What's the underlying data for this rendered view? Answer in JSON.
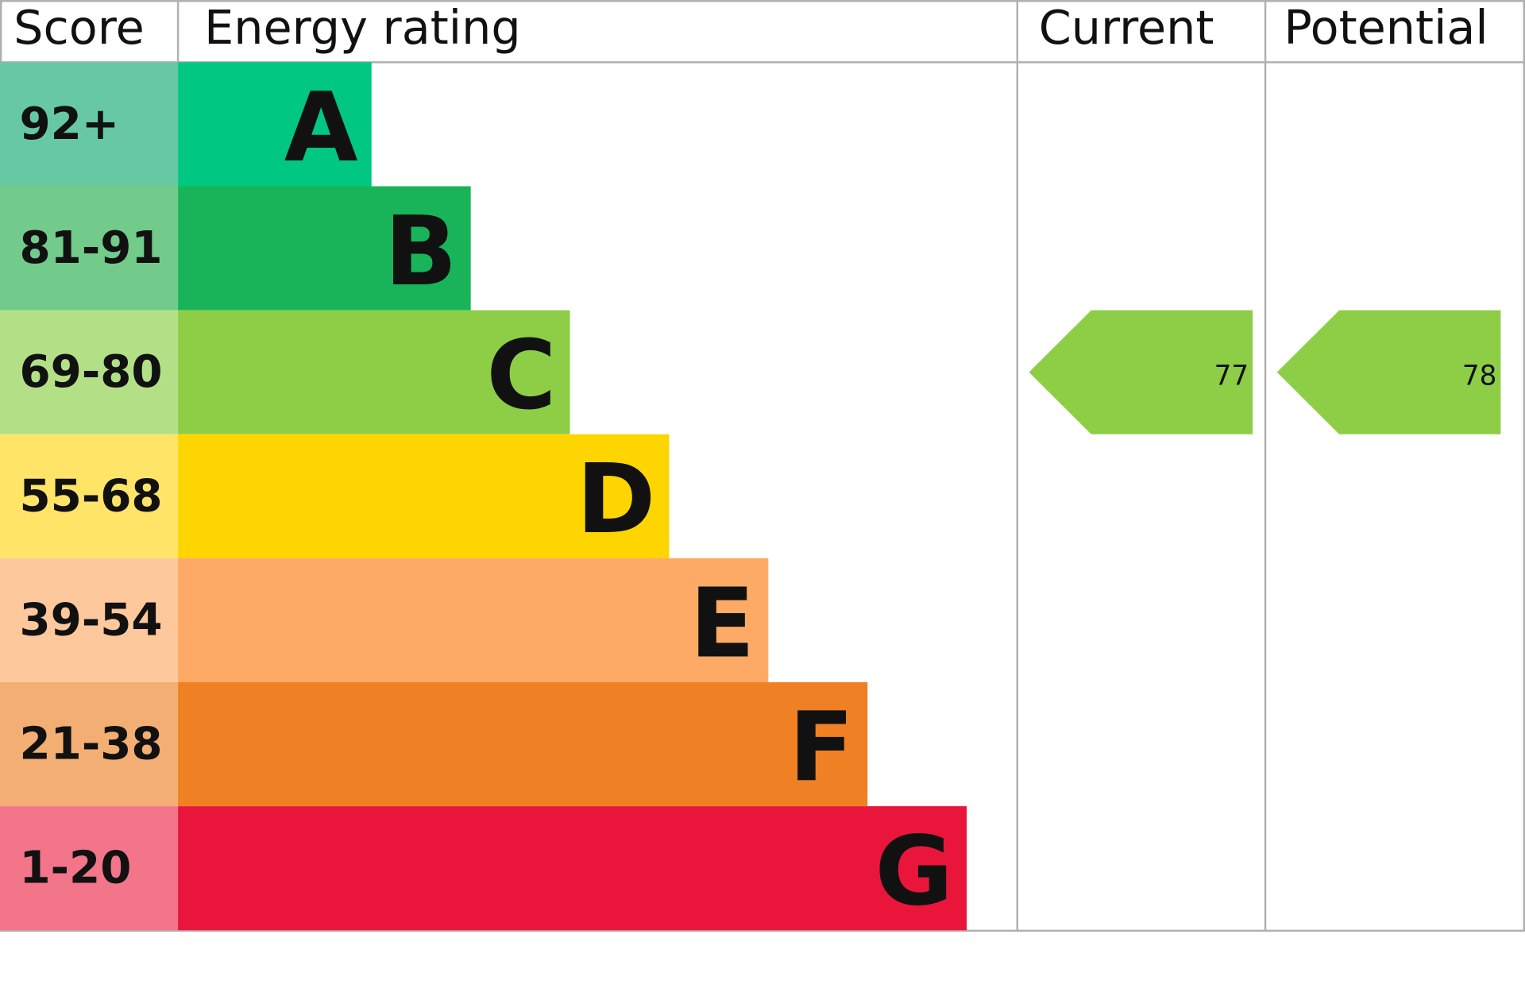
{
  "header": {
    "score": "Score",
    "rating": "Energy rating",
    "current": "Current",
    "potential": "Potential"
  },
  "bands": [
    {
      "score": "92+",
      "letter": "A",
      "color": "#00c781",
      "score_color": "#66c9a3"
    },
    {
      "score": "81-91",
      "letter": "B",
      "color": "#19b459",
      "score_color": "#72cb8b"
    },
    {
      "score": "69-80",
      "letter": "C",
      "color": "#8dce46",
      "score_color": "#b3e087"
    },
    {
      "score": "55-68",
      "letter": "D",
      "color": "#ffd500",
      "score_color": "#ffe467"
    },
    {
      "score": "39-54",
      "letter": "E",
      "color": "#fcaa65",
      "score_color": "#fdc89c"
    },
    {
      "score": "21-38",
      "letter": "F",
      "color": "#ef8023",
      "score_color": "#f3ae73"
    },
    {
      "score": "1-20",
      "letter": "G",
      "color": "#e9153b",
      "score_color": "#f2758a"
    }
  ],
  "current": {
    "value": 77
  },
  "potential": {
    "value": 78
  }
}
